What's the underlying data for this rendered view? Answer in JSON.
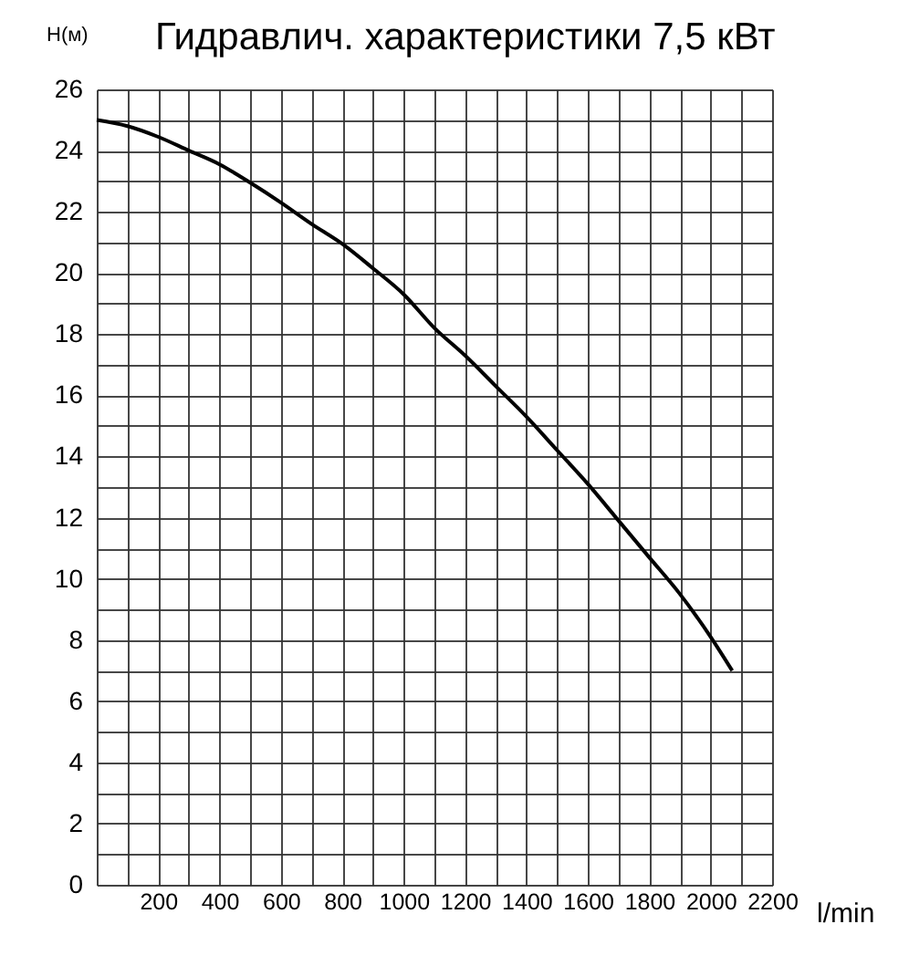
{
  "chart_data": {
    "type": "line",
    "title": "Гидравлич. характеристики 7,5 кВт",
    "xlabel": "l/min",
    "ylabel": "H(м)",
    "x": [
      0,
      100,
      200,
      300,
      400,
      500,
      600,
      700,
      800,
      900,
      1000,
      1100,
      1200,
      1300,
      1400,
      1500,
      1600,
      1700,
      1800,
      1900,
      2000,
      2070
    ],
    "series": [
      {
        "color": "#000000",
        "values": [
          25,
          24.8,
          24.45,
          24.0,
          23.55,
          22.95,
          22.3,
          21.6,
          20.95,
          20.15,
          19.3,
          18.2,
          17.3,
          16.3,
          15.3,
          14.2,
          13.1,
          11.9,
          10.7,
          9.5,
          8.1,
          7.0
        ]
      }
    ],
    "xlim": [
      0,
      2200
    ],
    "xticks": [
      {
        "value": 0,
        "label": null
      },
      {
        "value": 100,
        "label": null
      },
      200,
      {
        "value": 300,
        "label": null
      },
      400,
      {
        "value": 500,
        "label": null
      },
      600,
      {
        "value": 700,
        "label": null
      },
      800,
      {
        "value": 900,
        "label": null
      },
      1000,
      {
        "value": 1100,
        "label": null
      },
      1200,
      {
        "value": 1300,
        "label": null
      },
      1400,
      {
        "value": 1500,
        "label": null
      },
      1600,
      {
        "value": 1700,
        "label": null
      },
      1800,
      {
        "value": 1900,
        "label": null
      },
      2000,
      {
        "value": 2100,
        "label": null
      },
      2200
    ],
    "ylim": [
      0,
      26
    ],
    "yticks": [
      0,
      {
        "value": 1,
        "label": null
      },
      2,
      {
        "value": 3,
        "label": null
      },
      4,
      {
        "value": 5,
        "label": null
      },
      6,
      {
        "value": 7,
        "label": null
      },
      8,
      {
        "value": 9,
        "label": null
      },
      10,
      {
        "value": 11,
        "label": null
      },
      12,
      {
        "value": 13,
        "label": null
      },
      14,
      {
        "value": 15,
        "label": null
      },
      16,
      {
        "value": 17,
        "label": null
      },
      18,
      {
        "value": 19,
        "label": null
      },
      20,
      {
        "value": 21,
        "label": null
      },
      22,
      {
        "value": 23,
        "label": null
      },
      24,
      {
        "value": 25,
        "label": null
      },
      26
    ],
    "grid": true,
    "marker": "none",
    "line_style": "solid"
  }
}
